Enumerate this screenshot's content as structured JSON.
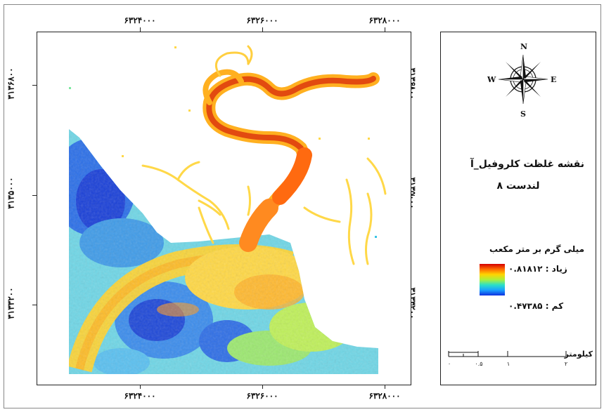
{
  "map": {
    "x_labels_top": [
      "۶۳۲۴۰۰۰",
      "۶۳۲۶۰۰۰",
      "۶۳۲۸۰۰۰"
    ],
    "x_labels_bottom": [
      "۶۳۲۴۰۰۰",
      "۶۳۲۶۰۰۰",
      "۶۳۲۸۰۰۰"
    ],
    "y_labels_left": [
      "۳۱۳۶۸۰۰",
      "۳۱۳۵۰۰۰",
      "۳۱۳۳۲۰۰"
    ],
    "y_labels_right": [
      "۳۱۳۶۸۰۰",
      "۳۱۳۵۰۰۰",
      "۳۱۳۳۲۰۰"
    ]
  },
  "legend": {
    "title": "نقشه غلظت کلروفیل_آ",
    "subtitle": "لندست ۸",
    "unit": "میلی گرم بر متر مکعب",
    "high_label": "زیاد : ۰.۸۱۸۱۲",
    "low_label": "کم : ۰.۴۷۳۸۵",
    "colors": {
      "high": "#d40000",
      "mid": "#ffd400",
      "low": "#1030e0"
    }
  },
  "compass": {
    "north": "N",
    "south": "S",
    "east": "E",
    "west": "W"
  },
  "scale": {
    "unit": "کیلومتر",
    "ticks": [
      "۰",
      "۰.۵",
      "۱",
      "۲"
    ]
  }
}
